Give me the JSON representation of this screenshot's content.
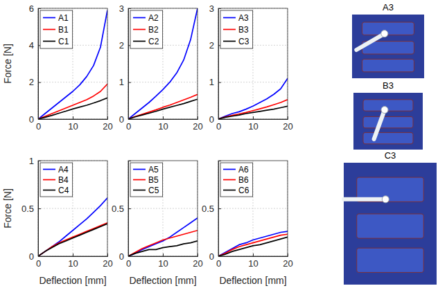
{
  "chart_data": [
    {
      "type": "line",
      "ylabel": "Force [N]",
      "x": [
        0,
        2,
        4,
        6,
        8,
        10,
        12,
        14,
        16,
        18,
        20
      ],
      "xlim": [
        0,
        20
      ],
      "xticks": [
        0,
        10,
        20
      ],
      "ylim": [
        0,
        6
      ],
      "yticks": [
        0,
        2,
        4,
        6
      ],
      "grid": true,
      "legend": "upper left",
      "series": [
        {
          "name": "A1",
          "color": "#0000ff",
          "values": [
            0,
            0.3,
            0.6,
            0.9,
            1.2,
            1.5,
            1.85,
            2.3,
            2.9,
            3.9,
            5.9
          ]
        },
        {
          "name": "B1",
          "color": "#ff0000",
          "values": [
            0,
            0.15,
            0.3,
            0.45,
            0.6,
            0.75,
            0.9,
            1.05,
            1.25,
            1.5,
            1.9
          ]
        },
        {
          "name": "C1",
          "color": "#000000",
          "values": [
            0,
            0.1,
            0.2,
            0.32,
            0.43,
            0.55,
            0.65,
            0.75,
            0.87,
            1.0,
            1.15
          ]
        }
      ]
    },
    {
      "type": "line",
      "x": [
        0,
        2,
        4,
        6,
        8,
        10,
        12,
        14,
        16,
        18,
        20
      ],
      "xlim": [
        0,
        20
      ],
      "xticks": [
        0,
        10,
        20
      ],
      "ylim": [
        0,
        3
      ],
      "yticks": [
        0,
        1,
        2,
        3
      ],
      "grid": true,
      "legend": "upper left",
      "series": [
        {
          "name": "A2",
          "color": "#0000ff",
          "values": [
            0,
            0.15,
            0.3,
            0.45,
            0.62,
            0.8,
            1.0,
            1.25,
            1.6,
            2.15,
            3.0
          ]
        },
        {
          "name": "B2",
          "color": "#ff0000",
          "values": [
            0,
            0.07,
            0.13,
            0.19,
            0.25,
            0.32,
            0.38,
            0.45,
            0.52,
            0.59,
            0.67
          ]
        },
        {
          "name": "C2",
          "color": "#000000",
          "values": [
            0,
            0.06,
            0.11,
            0.16,
            0.21,
            0.27,
            0.32,
            0.37,
            0.42,
            0.48,
            0.54
          ]
        }
      ]
    },
    {
      "type": "line",
      "x": [
        0,
        2,
        4,
        6,
        8,
        10,
        12,
        14,
        16,
        18,
        20
      ],
      "xlim": [
        0,
        20
      ],
      "xticks": [
        0,
        10,
        20
      ],
      "ylim": [
        0,
        3
      ],
      "yticks": [
        0,
        1,
        2,
        3
      ],
      "grid": true,
      "legend": "upper left",
      "series": [
        {
          "name": "A3",
          "color": "#0000ff",
          "values": [
            0,
            0.08,
            0.15,
            0.2,
            0.27,
            0.35,
            0.45,
            0.55,
            0.67,
            0.82,
            1.1
          ]
        },
        {
          "name": "B3",
          "color": "#ff0000",
          "values": [
            0,
            0.06,
            0.1,
            0.14,
            0.18,
            0.23,
            0.28,
            0.33,
            0.39,
            0.45,
            0.53
          ]
        },
        {
          "name": "C3",
          "color": "#000000",
          "values": [
            0,
            0.05,
            0.08,
            0.11,
            0.15,
            0.18,
            0.21,
            0.24,
            0.27,
            0.31,
            0.35
          ]
        }
      ]
    },
    {
      "type": "line",
      "ylabel": "Force [N]",
      "xlabel": "Deflection [mm]",
      "x": [
        0,
        2,
        4,
        6,
        8,
        10,
        12,
        14,
        16,
        18,
        20
      ],
      "xlim": [
        0,
        20
      ],
      "xticks": [
        0,
        10,
        20
      ],
      "ylim": [
        0,
        1
      ],
      "yticks": [
        0,
        0.5,
        1
      ],
      "grid": true,
      "legend": "upper left",
      "series": [
        {
          "name": "A4",
          "color": "#0000ff",
          "values": [
            0,
            0.05,
            0.1,
            0.15,
            0.21,
            0.27,
            0.33,
            0.39,
            0.46,
            0.53,
            0.61
          ]
        },
        {
          "name": "B4",
          "color": "#ff0000",
          "values": [
            0,
            0.05,
            0.1,
            0.14,
            0.17,
            0.2,
            0.23,
            0.26,
            0.29,
            0.32,
            0.35
          ]
        },
        {
          "name": "C4",
          "color": "#000000",
          "values": [
            0,
            0.05,
            0.09,
            0.13,
            0.16,
            0.19,
            0.22,
            0.25,
            0.28,
            0.31,
            0.34
          ]
        }
      ]
    },
    {
      "type": "line",
      "xlabel": "Deflection [mm]",
      "x": [
        0,
        2,
        4,
        6,
        8,
        10,
        12,
        14,
        16,
        18,
        20
      ],
      "xlim": [
        0,
        20
      ],
      "xticks": [
        0,
        10,
        20
      ],
      "ylim": [
        0,
        1
      ],
      "yticks": [
        0,
        0.5
      ],
      "grid": true,
      "legend": "upper left",
      "series": [
        {
          "name": "A5",
          "color": "#0000ff",
          "values": [
            0,
            0.03,
            0.07,
            0.1,
            0.13,
            0.16,
            0.2,
            0.25,
            0.3,
            0.35,
            0.4
          ]
        },
        {
          "name": "B5",
          "color": "#ff0000",
          "values": [
            0,
            0.04,
            0.08,
            0.11,
            0.14,
            0.17,
            0.19,
            0.21,
            0.23,
            0.25,
            0.27
          ]
        },
        {
          "name": "C5",
          "color": "#000000",
          "values": [
            0,
            0.03,
            0.05,
            0.07,
            0.07,
            0.09,
            0.1,
            0.11,
            0.13,
            0.14,
            0.16
          ]
        }
      ]
    },
    {
      "type": "line",
      "xlabel": "Deflection [mm]",
      "x": [
        0,
        2,
        4,
        6,
        8,
        10,
        12,
        14,
        16,
        18,
        20
      ],
      "xlim": [
        0,
        20
      ],
      "xticks": [
        0,
        10,
        20
      ],
      "ylim": [
        0,
        1
      ],
      "yticks": [
        0,
        0.5
      ],
      "grid": true,
      "legend": "upper left",
      "series": [
        {
          "name": "A6",
          "color": "#0000ff",
          "values": [
            0,
            0.04,
            0.08,
            0.12,
            0.14,
            0.17,
            0.19,
            0.21,
            0.23,
            0.25,
            0.26
          ]
        },
        {
          "name": "B6",
          "color": "#ff0000",
          "values": [
            0,
            0.03,
            0.07,
            0.1,
            0.12,
            0.14,
            0.16,
            0.18,
            0.2,
            0.22,
            0.23
          ]
        },
        {
          "name": "C6",
          "color": "#000000",
          "values": [
            0,
            0.02,
            0.05,
            0.07,
            0.09,
            0.11,
            0.12,
            0.14,
            0.16,
            0.18,
            0.2
          ]
        }
      ]
    }
  ],
  "photos": {
    "labels": [
      "A3",
      "B3",
      "C3"
    ]
  }
}
